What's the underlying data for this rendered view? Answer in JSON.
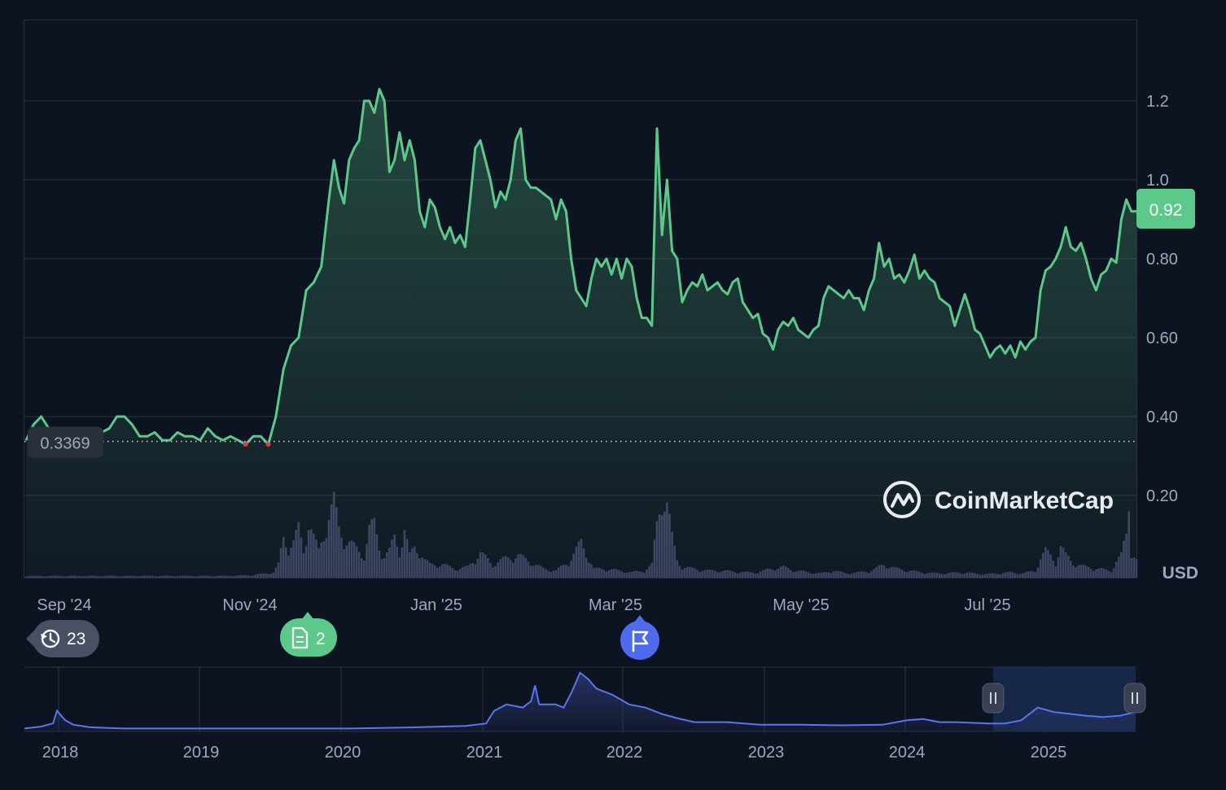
{
  "chart_data": [
    {
      "type": "area",
      "x_ticks": [
        "Sep '24",
        "Nov '24",
        "Jan '25",
        "Mar '25",
        "May '25",
        "Jul '25"
      ],
      "y_ticks": [
        "0.20",
        "0.40",
        "0.60",
        "0.80",
        "1.0",
        "1.2"
      ],
      "ylim": [
        0,
        1.41
      ],
      "currency_label": "USD",
      "current_price_label": "0.92",
      "current_price": 0.92,
      "baseline_label": "0.3369",
      "baseline_price": 0.3369,
      "grid": true,
      "colors": {
        "up": "#5cc98a",
        "down": "#ea3943",
        "badge": "#5cc98a",
        "volume": "#3a4160"
      },
      "price_series": [
        [
          0,
          0.34
        ],
        [
          3,
          0.38
        ],
        [
          6,
          0.4
        ],
        [
          9,
          0.37
        ],
        [
          12,
          0.35
        ],
        [
          15,
          0.35
        ],
        [
          18,
          0.36
        ],
        [
          21,
          0.35
        ],
        [
          24,
          0.33
        ],
        [
          27,
          0.35
        ],
        [
          30,
          0.36
        ],
        [
          33,
          0.37
        ],
        [
          36,
          0.4
        ],
        [
          39,
          0.4
        ],
        [
          42,
          0.38
        ],
        [
          45,
          0.35
        ],
        [
          48,
          0.35
        ],
        [
          51,
          0.36
        ],
        [
          54,
          0.34
        ],
        [
          57,
          0.34
        ],
        [
          60,
          0.36
        ],
        [
          63,
          0.35
        ],
        [
          66,
          0.35
        ],
        [
          69,
          0.34
        ],
        [
          72,
          0.37
        ],
        [
          75,
          0.35
        ],
        [
          78,
          0.34
        ],
        [
          81,
          0.35
        ],
        [
          84,
          0.34
        ],
        [
          87,
          0.33
        ],
        [
          90,
          0.35
        ],
        [
          93,
          0.35
        ],
        [
          96,
          0.33
        ],
        [
          99,
          0.4
        ],
        [
          102,
          0.52
        ],
        [
          105,
          0.58
        ],
        [
          108,
          0.6
        ],
        [
          111,
          0.72
        ],
        [
          114,
          0.74
        ],
        [
          117,
          0.78
        ],
        [
          120,
          0.95
        ],
        [
          122,
          1.05
        ],
        [
          124,
          0.98
        ],
        [
          126,
          0.94
        ],
        [
          128,
          1.05
        ],
        [
          130,
          1.08
        ],
        [
          132,
          1.1
        ],
        [
          134,
          1.2
        ],
        [
          136,
          1.2
        ],
        [
          138,
          1.17
        ],
        [
          140,
          1.23
        ],
        [
          142,
          1.2
        ],
        [
          144,
          1.02
        ],
        [
          146,
          1.05
        ],
        [
          148,
          1.12
        ],
        [
          150,
          1.05
        ],
        [
          152,
          1.1
        ],
        [
          154,
          1.05
        ],
        [
          156,
          0.92
        ],
        [
          158,
          0.88
        ],
        [
          160,
          0.95
        ],
        [
          162,
          0.93
        ],
        [
          164,
          0.88
        ],
        [
          166,
          0.85
        ],
        [
          168,
          0.88
        ],
        [
          170,
          0.84
        ],
        [
          172,
          0.86
        ],
        [
          174,
          0.83
        ],
        [
          176,
          0.95
        ],
        [
          178,
          1.08
        ],
        [
          180,
          1.1
        ],
        [
          182,
          1.05
        ],
        [
          184,
          1.0
        ],
        [
          186,
          0.93
        ],
        [
          188,
          0.97
        ],
        [
          190,
          0.95
        ],
        [
          192,
          1.0
        ],
        [
          194,
          1.1
        ],
        [
          196,
          1.13
        ],
        [
          198,
          1.0
        ],
        [
          200,
          0.98
        ],
        [
          202,
          0.98
        ],
        [
          204,
          0.97
        ],
        [
          206,
          0.96
        ],
        [
          208,
          0.95
        ],
        [
          210,
          0.9
        ],
        [
          212,
          0.95
        ],
        [
          214,
          0.92
        ],
        [
          216,
          0.8
        ],
        [
          218,
          0.72
        ],
        [
          220,
          0.7
        ],
        [
          222,
          0.68
        ],
        [
          224,
          0.75
        ],
        [
          226,
          0.8
        ],
        [
          228,
          0.78
        ],
        [
          230,
          0.8
        ],
        [
          232,
          0.76
        ],
        [
          234,
          0.8
        ],
        [
          236,
          0.75
        ],
        [
          238,
          0.8
        ],
        [
          240,
          0.78
        ],
        [
          242,
          0.7
        ],
        [
          244,
          0.65
        ],
        [
          246,
          0.65
        ],
        [
          248,
          0.63
        ],
        [
          250,
          1.13
        ],
        [
          252,
          0.86
        ],
        [
          254,
          1.0
        ],
        [
          256,
          0.82
        ],
        [
          258,
          0.8
        ],
        [
          260,
          0.69
        ],
        [
          262,
          0.72
        ],
        [
          264,
          0.74
        ],
        [
          266,
          0.73
        ],
        [
          268,
          0.76
        ],
        [
          270,
          0.72
        ],
        [
          272,
          0.73
        ],
        [
          274,
          0.74
        ],
        [
          276,
          0.72
        ],
        [
          278,
          0.71
        ],
        [
          280,
          0.74
        ],
        [
          282,
          0.75
        ],
        [
          284,
          0.69
        ],
        [
          286,
          0.67
        ],
        [
          288,
          0.65
        ],
        [
          290,
          0.66
        ],
        [
          292,
          0.61
        ],
        [
          294,
          0.6
        ],
        [
          296,
          0.57
        ],
        [
          298,
          0.62
        ],
        [
          300,
          0.64
        ],
        [
          302,
          0.63
        ],
        [
          304,
          0.65
        ],
        [
          306,
          0.62
        ],
        [
          308,
          0.61
        ],
        [
          310,
          0.6
        ],
        [
          312,
          0.62
        ],
        [
          314,
          0.63
        ],
        [
          316,
          0.7
        ],
        [
          318,
          0.73
        ],
        [
          320,
          0.72
        ],
        [
          322,
          0.71
        ],
        [
          324,
          0.7
        ],
        [
          326,
          0.72
        ],
        [
          328,
          0.7
        ],
        [
          330,
          0.7
        ],
        [
          332,
          0.67
        ],
        [
          334,
          0.72
        ],
        [
          336,
          0.75
        ],
        [
          338,
          0.84
        ],
        [
          340,
          0.78
        ],
        [
          342,
          0.8
        ],
        [
          344,
          0.75
        ],
        [
          346,
          0.76
        ],
        [
          348,
          0.74
        ],
        [
          350,
          0.77
        ],
        [
          352,
          0.81
        ],
        [
          354,
          0.75
        ],
        [
          356,
          0.77
        ],
        [
          358,
          0.75
        ],
        [
          360,
          0.74
        ],
        [
          362,
          0.7
        ],
        [
          364,
          0.69
        ],
        [
          366,
          0.68
        ],
        [
          368,
          0.63
        ],
        [
          370,
          0.67
        ],
        [
          372,
          0.71
        ],
        [
          374,
          0.67
        ],
        [
          376,
          0.62
        ],
        [
          378,
          0.61
        ],
        [
          380,
          0.58
        ],
        [
          382,
          0.55
        ],
        [
          384,
          0.57
        ],
        [
          386,
          0.58
        ],
        [
          388,
          0.56
        ],
        [
          390,
          0.58
        ],
        [
          392,
          0.55
        ],
        [
          394,
          0.59
        ],
        [
          396,
          0.57
        ],
        [
          398,
          0.59
        ],
        [
          400,
          0.6
        ],
        [
          402,
          0.72
        ],
        [
          404,
          0.77
        ],
        [
          406,
          0.78
        ],
        [
          408,
          0.8
        ],
        [
          410,
          0.83
        ],
        [
          412,
          0.88
        ],
        [
          414,
          0.83
        ],
        [
          416,
          0.82
        ],
        [
          418,
          0.84
        ],
        [
          420,
          0.8
        ],
        [
          422,
          0.75
        ],
        [
          424,
          0.72
        ],
        [
          426,
          0.76
        ],
        [
          428,
          0.77
        ],
        [
          430,
          0.8
        ],
        [
          432,
          0.79
        ],
        [
          434,
          0.9
        ],
        [
          436,
          0.95
        ],
        [
          438,
          0.92
        ],
        [
          440,
          0.92
        ]
      ],
      "volume_series": [
        [
          0,
          0.02
        ],
        [
          10,
          0.02
        ],
        [
          20,
          0.02
        ],
        [
          30,
          0.02
        ],
        [
          40,
          0.02
        ],
        [
          50,
          0.02
        ],
        [
          60,
          0.02
        ],
        [
          70,
          0.02
        ],
        [
          80,
          0.02
        ],
        [
          90,
          0.03
        ],
        [
          98,
          0.06
        ],
        [
          100,
          0.15
        ],
        [
          102,
          0.45
        ],
        [
          104,
          0.35
        ],
        [
          106,
          0.4
        ],
        [
          108,
          0.55
        ],
        [
          110,
          0.3
        ],
        [
          112,
          0.65
        ],
        [
          114,
          0.45
        ],
        [
          116,
          0.3
        ],
        [
          118,
          0.5
        ],
        [
          120,
          0.7
        ],
        [
          122,
          0.85
        ],
        [
          124,
          0.55
        ],
        [
          126,
          0.45
        ],
        [
          128,
          0.4
        ],
        [
          130,
          0.35
        ],
        [
          132,
          0.3
        ],
        [
          134,
          0.25
        ],
        [
          136,
          0.55
        ],
        [
          138,
          0.6
        ],
        [
          140,
          0.35
        ],
        [
          142,
          0.25
        ],
        [
          144,
          0.3
        ],
        [
          146,
          0.45
        ],
        [
          148,
          0.3
        ],
        [
          150,
          0.55
        ],
        [
          152,
          0.25
        ],
        [
          154,
          0.35
        ],
        [
          156,
          0.3
        ],
        [
          158,
          0.2
        ],
        [
          160,
          0.15
        ],
        [
          165,
          0.15
        ],
        [
          170,
          0.1
        ],
        [
          175,
          0.12
        ],
        [
          180,
          0.28
        ],
        [
          185,
          0.15
        ],
        [
          190,
          0.22
        ],
        [
          195,
          0.25
        ],
        [
          200,
          0.18
        ],
        [
          205,
          0.1
        ],
        [
          210,
          0.08
        ],
        [
          215,
          0.18
        ],
        [
          220,
          0.4
        ],
        [
          225,
          0.1
        ],
        [
          230,
          0.1
        ],
        [
          235,
          0.08
        ],
        [
          240,
          0.06
        ],
        [
          245,
          0.08
        ],
        [
          248,
          0.15
        ],
        [
          250,
          0.6
        ],
        [
          252,
          0.95
        ],
        [
          254,
          0.85
        ],
        [
          256,
          0.45
        ],
        [
          258,
          0.2
        ],
        [
          260,
          0.12
        ],
        [
          265,
          0.1
        ],
        [
          270,
          0.08
        ],
        [
          275,
          0.08
        ],
        [
          280,
          0.07
        ],
        [
          285,
          0.06
        ],
        [
          290,
          0.06
        ],
        [
          295,
          0.1
        ],
        [
          300,
          0.12
        ],
        [
          305,
          0.08
        ],
        [
          310,
          0.06
        ],
        [
          315,
          0.05
        ],
        [
          320,
          0.08
        ],
        [
          325,
          0.05
        ],
        [
          330,
          0.06
        ],
        [
          335,
          0.08
        ],
        [
          340,
          0.15
        ],
        [
          345,
          0.1
        ],
        [
          350,
          0.08
        ],
        [
          355,
          0.06
        ],
        [
          360,
          0.05
        ],
        [
          365,
          0.05
        ],
        [
          370,
          0.06
        ],
        [
          375,
          0.05
        ],
        [
          380,
          0.04
        ],
        [
          385,
          0.05
        ],
        [
          390,
          0.06
        ],
        [
          395,
          0.05
        ],
        [
          400,
          0.08
        ],
        [
          402,
          0.22
        ],
        [
          404,
          0.3
        ],
        [
          406,
          0.25
        ],
        [
          408,
          0.18
        ],
        [
          410,
          0.35
        ],
        [
          412,
          0.25
        ],
        [
          414,
          0.2
        ],
        [
          416,
          0.15
        ],
        [
          420,
          0.12
        ],
        [
          425,
          0.1
        ],
        [
          430,
          0.08
        ],
        [
          432,
          0.18
        ],
        [
          434,
          0.25
        ],
        [
          436,
          0.5
        ],
        [
          437,
          0.9
        ],
        [
          438,
          0.3
        ],
        [
          440,
          0.2
        ]
      ]
    },
    {
      "type": "area",
      "x_ticks": [
        "2018",
        "2019",
        "2020",
        "2021",
        "2022",
        "2023",
        "2024",
        "2025"
      ],
      "colors": {
        "line": "#5b74f0"
      },
      "series": [
        [
          0,
          0.02
        ],
        [
          20,
          0.05
        ],
        [
          35,
          0.1
        ],
        [
          40,
          0.3
        ],
        [
          45,
          0.22
        ],
        [
          50,
          0.15
        ],
        [
          60,
          0.08
        ],
        [
          80,
          0.04
        ],
        [
          120,
          0.02
        ],
        [
          200,
          0.02
        ],
        [
          300,
          0.02
        ],
        [
          400,
          0.02
        ],
        [
          480,
          0.04
        ],
        [
          540,
          0.06
        ],
        [
          565,
          0.1
        ],
        [
          575,
          0.3
        ],
        [
          590,
          0.4
        ],
        [
          610,
          0.35
        ],
        [
          620,
          0.45
        ],
        [
          625,
          0.7
        ],
        [
          630,
          0.4
        ],
        [
          650,
          0.4
        ],
        [
          660,
          0.35
        ],
        [
          670,
          0.6
        ],
        [
          680,
          0.9
        ],
        [
          690,
          0.8
        ],
        [
          700,
          0.65
        ],
        [
          720,
          0.55
        ],
        [
          740,
          0.4
        ],
        [
          760,
          0.35
        ],
        [
          780,
          0.25
        ],
        [
          800,
          0.18
        ],
        [
          820,
          0.12
        ],
        [
          860,
          0.12
        ],
        [
          900,
          0.08
        ],
        [
          950,
          0.08
        ],
        [
          1000,
          0.07
        ],
        [
          1050,
          0.08
        ],
        [
          1080,
          0.15
        ],
        [
          1100,
          0.17
        ],
        [
          1120,
          0.12
        ],
        [
          1140,
          0.12
        ],
        [
          1180,
          0.1
        ],
        [
          1200,
          0.1
        ],
        [
          1220,
          0.15
        ],
        [
          1240,
          0.35
        ],
        [
          1260,
          0.28
        ],
        [
          1280,
          0.25
        ],
        [
          1300,
          0.22
        ],
        [
          1320,
          0.2
        ],
        [
          1340,
          0.22
        ],
        [
          1360,
          0.28
        ]
      ]
    }
  ],
  "annotations": {
    "history_count": "23",
    "news_count": "2"
  },
  "watermark": {
    "text": "CoinMarketCap"
  }
}
